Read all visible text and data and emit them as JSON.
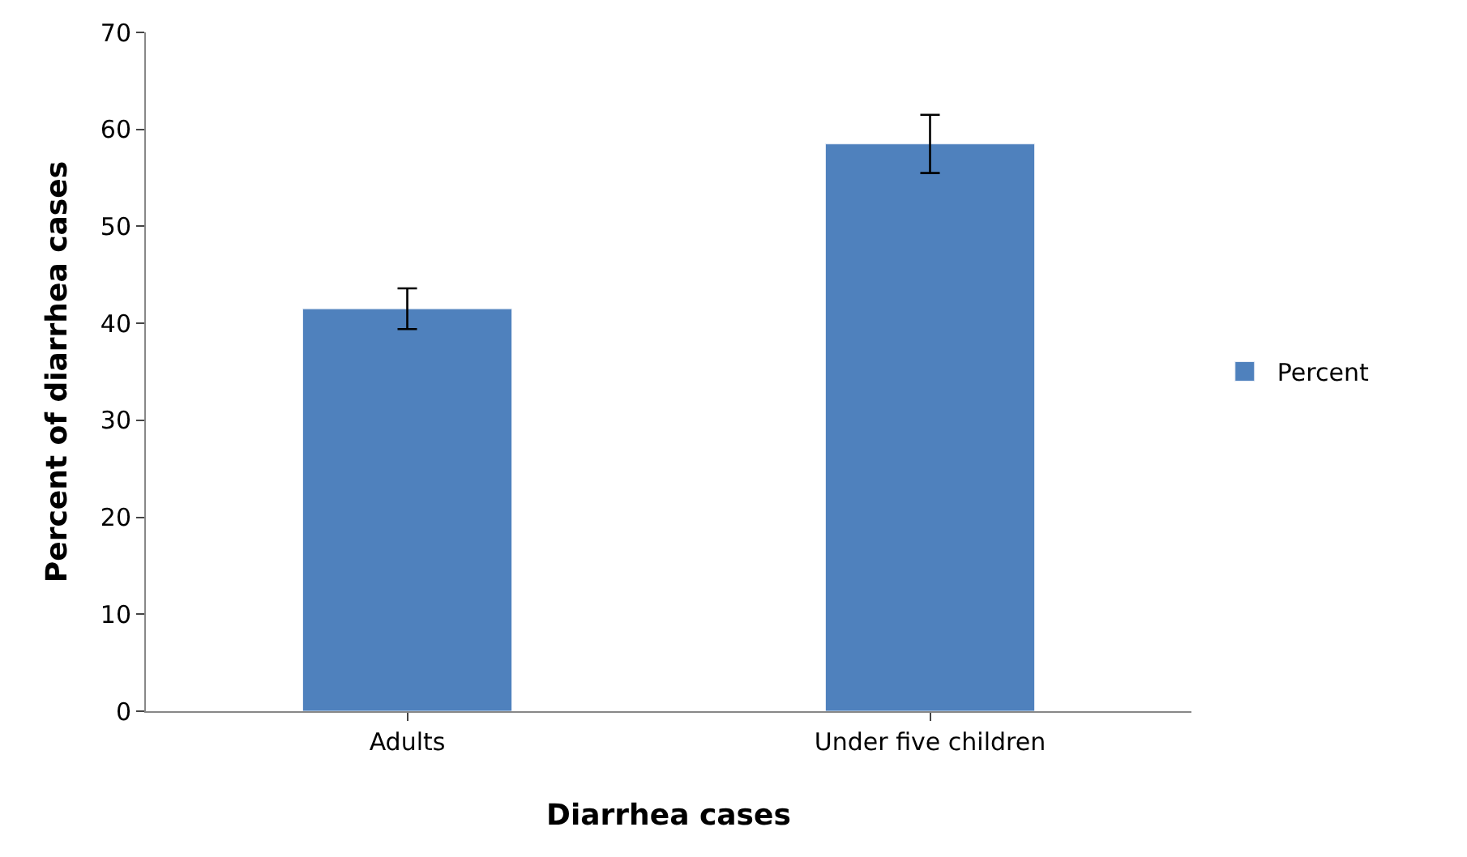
{
  "chart_data": {
    "type": "bar",
    "xlabel": "Diarrhea cases",
    "ylabel": "Percent of diarrhea cases",
    "categories": [
      "Adults",
      "Under five children"
    ],
    "series": [
      {
        "name": "Percent",
        "color": "#4f81bd",
        "values": [
          41.5,
          58.5
        ],
        "errors": [
          2.1,
          3
        ]
      }
    ],
    "ylim": [
      0,
      70
    ],
    "yticks": [
      0,
      10,
      20,
      30,
      40,
      50,
      60,
      70
    ],
    "legend": "right"
  }
}
